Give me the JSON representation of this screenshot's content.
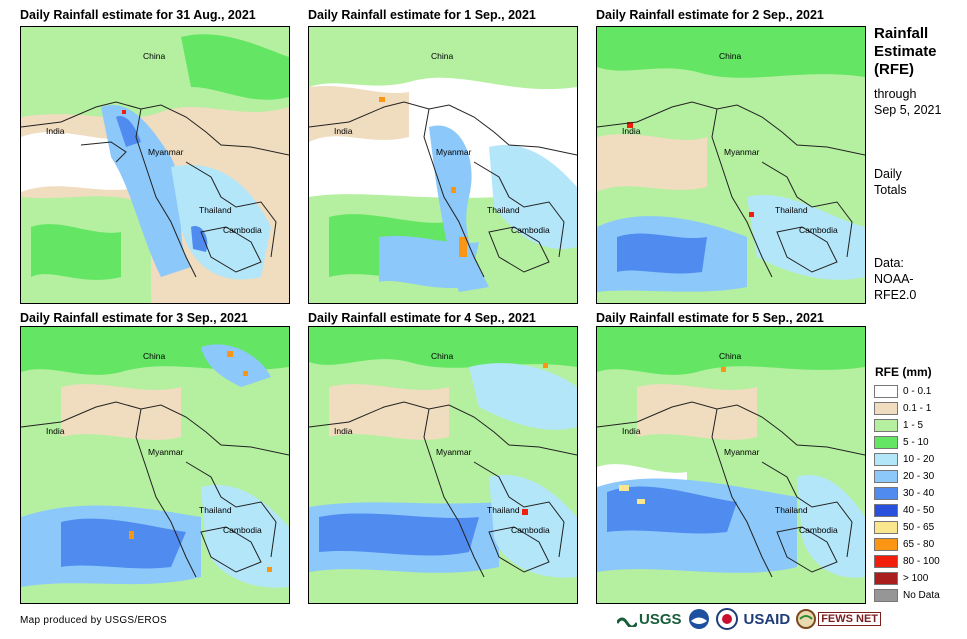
{
  "panels": [
    {
      "title": "Daily Rainfall estimate for 31 Aug., 2021",
      "labels": {
        "china": "China",
        "india": "India",
        "myanmar": "Myanmar",
        "thailand": "Thailand",
        "cambodia": "Cambodia"
      }
    },
    {
      "title": "Daily Rainfall estimate for 1 Sep., 2021",
      "labels": {
        "china": "China",
        "india": "India",
        "myanmar": "Myanmar",
        "thailand": "Thailand",
        "cambodia": "Cambodia"
      }
    },
    {
      "title": "Daily Rainfall estimate for 2 Sep., 2021",
      "labels": {
        "china": "China",
        "india": "India",
        "myanmar": "Myanmar",
        "thailand": "Thailand",
        "cambodia": "Cambodia"
      }
    },
    {
      "title": "Daily Rainfall estimate for 3 Sep., 2021",
      "labels": {
        "china": "China",
        "india": "India",
        "myanmar": "Myanmar",
        "thailand": "Thailand",
        "cambodia": "Cambodia"
      }
    },
    {
      "title": "Daily Rainfall estimate for 4 Sep., 2021",
      "labels": {
        "china": "China",
        "india": "India",
        "myanmar": "Myanmar",
        "thailand": "Thailand",
        "cambodia": "Cambodia"
      }
    },
    {
      "title": "Daily Rainfall estimate for 5 Sep., 2021",
      "labels": {
        "china": "China",
        "india": "India",
        "myanmar": "Myanmar",
        "thailand": "Thailand",
        "cambodia": "Cambodia"
      }
    }
  ],
  "side": {
    "title_line1": "Rainfall",
    "title_line2": "Estimate",
    "title_line3": "(RFE)",
    "through": "through",
    "date": "Sep 5, 2021",
    "daily": "Daily",
    "totals": "Totals",
    "data_label": "Data:",
    "source1": "NOAA-",
    "source2": "RFE2.0"
  },
  "legend": {
    "title": "RFE (mm)",
    "items": [
      {
        "label": "0 - 0.1",
        "color": "#ffffff"
      },
      {
        "label": "0.1 - 1",
        "color": "#f0dcbe"
      },
      {
        "label": "1 - 5",
        "color": "#b4f0a0"
      },
      {
        "label": "5 - 10",
        "color": "#64e664"
      },
      {
        "label": "10 - 20",
        "color": "#b4e6fa"
      },
      {
        "label": "20 - 30",
        "color": "#8cc8fa"
      },
      {
        "label": "30 - 40",
        "color": "#508cf0"
      },
      {
        "label": "40 - 50",
        "color": "#2850dc"
      },
      {
        "label": "50 - 65",
        "color": "#fae68c"
      },
      {
        "label": "65 - 80",
        "color": "#fa9614"
      },
      {
        "label": "80 - 100",
        "color": "#f01e0a"
      },
      {
        "label": "> 100",
        "color": "#aa1e1e"
      },
      {
        "label": "No Data",
        "color": "#969696"
      }
    ]
  },
  "footer": {
    "credit": "Map produced by USGS/EROS"
  },
  "logos": {
    "usgs": "USGS",
    "usaid": "USAID",
    "fewsnet": "FEWS NET"
  }
}
